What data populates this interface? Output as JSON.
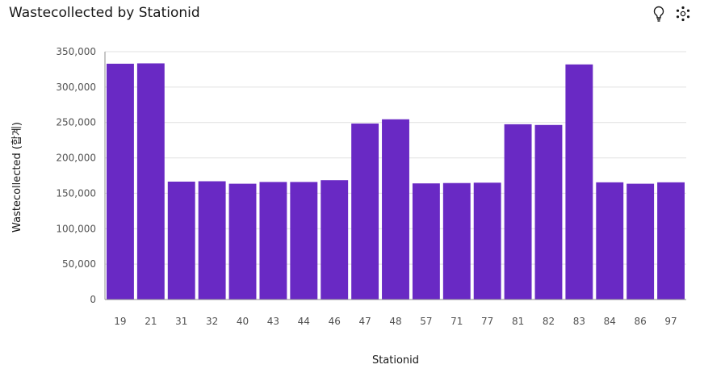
{
  "header": {
    "title": "Wastecollected by Stationid",
    "insights_icon": "lightbulb-icon",
    "explore_icon": "explore-dots-icon"
  },
  "colors": {
    "bar": "#6929c4",
    "grid": "#e0e0e0",
    "axis": "#8d8d8d"
  },
  "chart_data": {
    "type": "bar",
    "title": "Wastecollected by Stationid",
    "xlabel": "Stationid",
    "ylabel": "Wastecollected (합계)",
    "categories": [
      "19",
      "21",
      "31",
      "32",
      "40",
      "43",
      "44",
      "46",
      "47",
      "48",
      "57",
      "71",
      "77",
      "81",
      "82",
      "83",
      "84",
      "86",
      "97"
    ],
    "values": [
      333000,
      333500,
      166500,
      167000,
      163500,
      166000,
      166000,
      168500,
      248500,
      254500,
      164000,
      164500,
      165000,
      247500,
      246500,
      332000,
      165500,
      163500,
      165500
    ],
    "ylim": [
      0,
      350000
    ],
    "yticks": [
      "0",
      "50,000",
      "100,000",
      "150,000",
      "200,000",
      "250,000",
      "300,000",
      "350,000"
    ],
    "grid": true,
    "legend": "none"
  }
}
